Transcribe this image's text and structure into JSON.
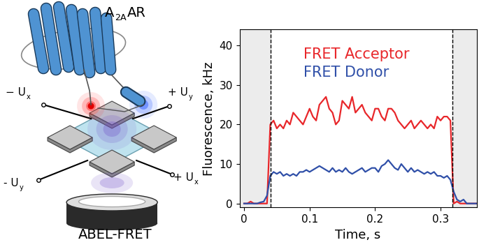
{
  "chart_data": {
    "type": "line",
    "xlabel": "Time, s",
    "ylabel": "Fluorescence, kHz",
    "xlim": [
      -0.007,
      0.355
    ],
    "xticks": [
      0,
      0.1,
      0.2,
      0.3
    ],
    "ylim": [
      -1,
      44
    ],
    "yticks": [
      0,
      10,
      20,
      30,
      40
    ],
    "events": [
      0.04,
      0.318
    ],
    "x": [
      0.0,
      0.005,
      0.01,
      0.015,
      0.02,
      0.025,
      0.03,
      0.035,
      0.04,
      0.045,
      0.05,
      0.055,
      0.06,
      0.065,
      0.07,
      0.075,
      0.08,
      0.085,
      0.09,
      0.095,
      0.1,
      0.105,
      0.11,
      0.115,
      0.12,
      0.125,
      0.13,
      0.135,
      0.14,
      0.145,
      0.15,
      0.155,
      0.16,
      0.165,
      0.17,
      0.175,
      0.18,
      0.185,
      0.19,
      0.195,
      0.2,
      0.205,
      0.21,
      0.215,
      0.22,
      0.225,
      0.23,
      0.235,
      0.24,
      0.245,
      0.25,
      0.255,
      0.26,
      0.265,
      0.27,
      0.275,
      0.28,
      0.285,
      0.29,
      0.295,
      0.3,
      0.305,
      0.31,
      0.315,
      0.32,
      0.325,
      0.33,
      0.335,
      0.34,
      0.345,
      0.35,
      0.355
    ],
    "series": [
      {
        "name": "FRET Acceptor",
        "color": "#e8262a",
        "values": [
          0,
          0,
          0.5,
          0,
          0,
          0,
          0,
          0,
          20,
          21,
          19,
          20,
          19,
          21,
          20,
          23,
          22,
          21,
          20,
          22,
          24,
          22,
          21,
          25,
          26,
          27,
          24,
          23,
          20,
          21,
          26,
          25,
          24,
          27,
          23,
          24,
          25,
          23,
          22,
          21,
          24,
          24,
          22,
          21,
          24,
          24,
          23,
          21,
          20,
          19,
          20,
          21,
          19,
          20,
          21,
          20,
          19,
          20,
          19,
          22,
          21,
          22,
          22,
          21,
          0,
          0.5,
          0,
          0,
          0,
          0,
          0,
          0
        ]
      },
      {
        "name": "FRET Donor",
        "color": "#2f4fa8",
        "values": [
          0,
          0,
          0,
          0,
          0,
          0.3,
          0.5,
          2,
          7,
          8,
          7.5,
          8,
          7,
          7.5,
          7,
          7.5,
          7,
          8,
          8,
          8.5,
          8,
          8.5,
          9,
          9.5,
          9,
          8.5,
          8,
          9,
          8,
          8.5,
          8,
          9,
          8,
          7.5,
          8,
          8.5,
          9,
          8,
          8.5,
          9,
          9,
          8,
          9.5,
          10,
          11,
          10,
          9,
          8.5,
          10,
          9,
          8,
          9,
          8,
          8.5,
          8,
          7.5,
          8,
          7.5,
          8,
          7,
          7,
          6.5,
          7,
          6,
          3,
          1,
          0.5,
          1,
          0,
          0,
          0,
          0
        ]
      }
    ]
  },
  "diagram": {
    "protein": {
      "text": "A",
      "subscript": "2A",
      "text_after": "AR"
    },
    "method": "ABEL-FRET",
    "electrodes": [
      {
        "text": "− U",
        "subscript": "x"
      },
      {
        "text": "+ U",
        "subscript": "y"
      },
      {
        "text": "- U",
        "subscript": "y"
      },
      {
        "text": "+ U",
        "subscript": "x"
      }
    ]
  }
}
